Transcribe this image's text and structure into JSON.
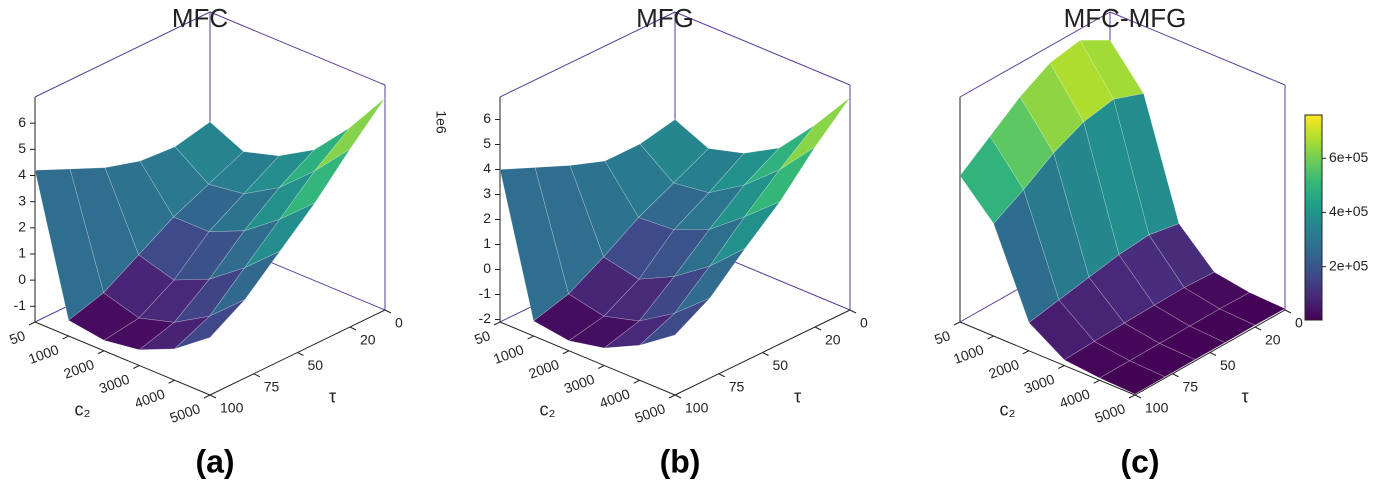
{
  "chart_data": [
    {
      "type": "surface",
      "title": "MFC",
      "panel_label": "(a)",
      "xlabel": "c₂",
      "ylabel": "τ",
      "colormap": "viridis",
      "x": [
        50,
        1000,
        2000,
        3000,
        4000,
        5000
      ],
      "y": [
        0,
        20,
        40,
        60,
        80,
        100
      ],
      "z": [
        [
          2.8,
          2.2,
          2.6,
          3.4,
          4.8,
          6.5
        ],
        [
          2.5,
          1.6,
          1.8,
          2.6,
          3.8,
          5.2
        ],
        [
          2.6,
          1.0,
          1.0,
          1.6,
          2.6,
          3.8
        ],
        [
          3.0,
          0.2,
          -0.2,
          0.4,
          1.4,
          2.6
        ],
        [
          3.6,
          -0.6,
          -1.0,
          -0.6,
          0.2,
          1.4
        ],
        [
          4.2,
          -1.0,
          -1.2,
          -1.0,
          -0.4,
          0.6
        ]
      ],
      "clim": [
        -1.2,
        6.5
      ],
      "xlim": [
        50,
        5000
      ],
      "ylim": [
        0,
        100
      ],
      "zlim": [
        -1.6,
        7.0
      ],
      "xticks": [
        50,
        1000,
        2000,
        3000,
        4000,
        5000
      ],
      "yticks": [
        0,
        20,
        50,
        75,
        100
      ],
      "zticks": [
        -1,
        0,
        1,
        2,
        3,
        4,
        5,
        6
      ]
    },
    {
      "type": "surface",
      "title": "MFG",
      "panel_label": "(b)",
      "xlabel": "c₂",
      "ylabel": "τ",
      "colormap": "viridis",
      "offset_label": "1e6",
      "x": [
        50,
        1000,
        2000,
        3000,
        4000,
        5000
      ],
      "y": [
        0,
        20,
        40,
        60,
        80,
        100
      ],
      "z": [
        [
          2.6,
          2.0,
          2.4,
          3.2,
          4.7,
          6.4
        ],
        [
          2.3,
          1.3,
          1.5,
          2.4,
          3.6,
          5.1
        ],
        [
          2.3,
          0.6,
          0.7,
          1.3,
          2.4,
          3.6
        ],
        [
          2.8,
          -0.3,
          -0.6,
          0.1,
          1.1,
          2.4
        ],
        [
          3.4,
          -1.1,
          -1.4,
          -1.0,
          -0.1,
          1.1
        ],
        [
          4.0,
          -1.5,
          -1.7,
          -1.4,
          -0.7,
          0.3
        ]
      ],
      "clim": [
        -1.7,
        6.4
      ],
      "xlim": [
        50,
        5000
      ],
      "ylim": [
        0,
        100
      ],
      "zlim": [
        -2.1,
        6.9
      ],
      "xticks": [
        50,
        1000,
        2000,
        3000,
        4000,
        5000
      ],
      "yticks": [
        0,
        20,
        50,
        75,
        100
      ],
      "zticks": [
        -2,
        -1,
        0,
        1,
        2,
        3,
        4,
        5,
        6
      ]
    },
    {
      "type": "surface",
      "title": "MFC-MFG",
      "panel_label": "(c)",
      "xlabel": "c₂",
      "ylabel": "τ",
      "colormap": "viridis",
      "x": [
        50,
        1000,
        2000,
        3000,
        4000,
        5000
      ],
      "y": [
        0,
        20,
        40,
        60,
        80,
        100
      ],
      "z": [
        [
          700000,
          560000,
          150000,
          30000,
          10000,
          5000
        ],
        [
          760000,
          600000,
          170000,
          35000,
          12000,
          6000
        ],
        [
          740000,
          580000,
          160000,
          33000,
          11000,
          5000
        ],
        [
          680000,
          530000,
          140000,
          30000,
          10000,
          5000
        ],
        [
          600000,
          460000,
          120000,
          25000,
          9000,
          4000
        ],
        [
          520000,
          400000,
          100000,
          20000,
          8000,
          3000
        ]
      ],
      "clim": [
        3000,
        760000
      ],
      "xlim": [
        50,
        5000
      ],
      "ylim": [
        0,
        100
      ],
      "zlim": [
        0,
        800000
      ],
      "xticks": [
        50,
        1000,
        2000,
        3000,
        4000,
        5000
      ],
      "yticks": [
        0,
        20,
        50,
        75,
        100
      ],
      "colorbar_ticks": [
        {
          "value": 200000,
          "label": "2e+05"
        },
        {
          "value": 400000,
          "label": "4e+05"
        },
        {
          "value": 600000,
          "label": "6e+05"
        }
      ]
    }
  ]
}
